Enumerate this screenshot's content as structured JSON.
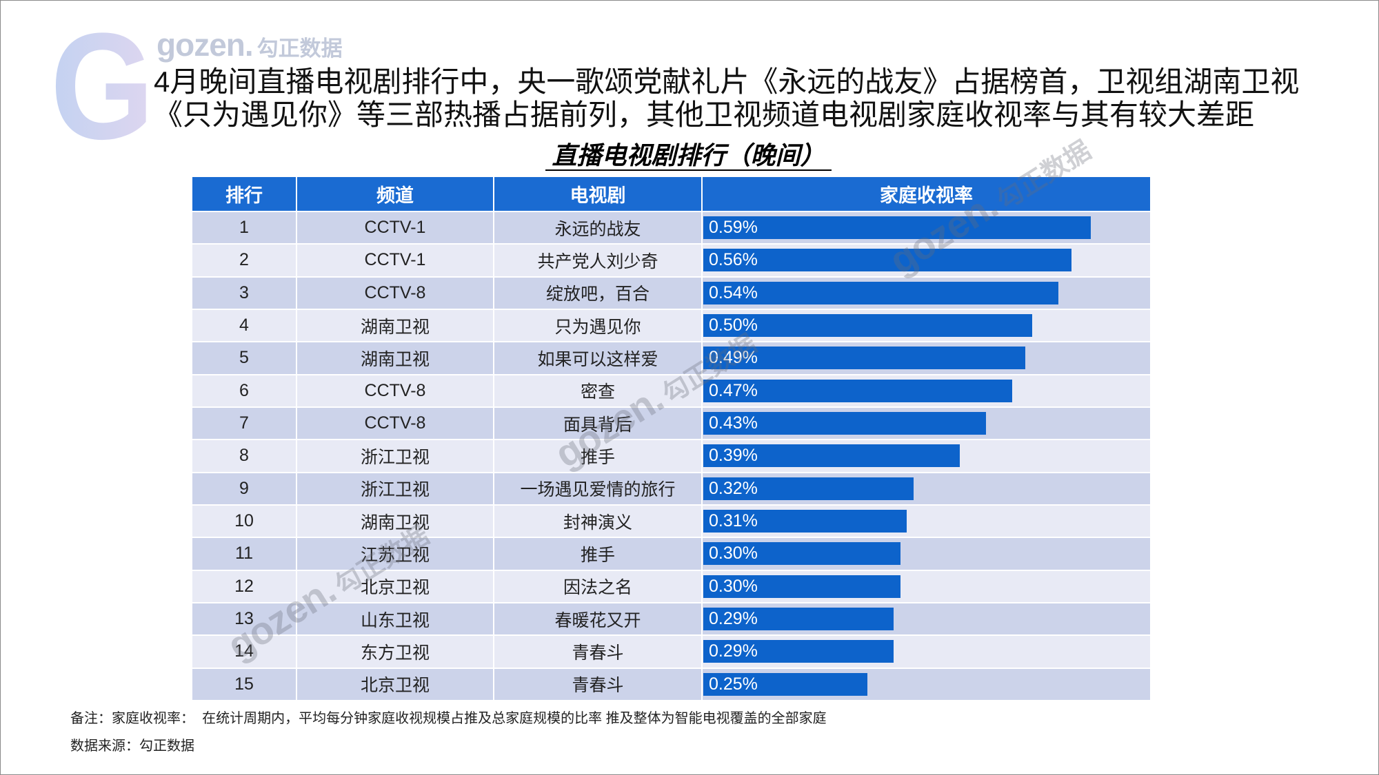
{
  "slide": {
    "logo": {
      "mark": "G",
      "latin": "gozen.",
      "cn": "勾正数据"
    },
    "headline": [
      "4月晚间直播电视剧排行中，央一歌颂党献礼片《永远的战友》占据榜首，卫视组湖南卫视",
      "《只为遇见你》等三部热播占据前列，其他卫视频道电视剧家庭收视率与其有较大差距"
    ],
    "footnote": "备注：家庭收视率：  在统计周期内，平均每分钟家庭收视规模占推及总家庭规模的比率 推及整体为智能电视覆盖的全部家庭",
    "source": "数据来源：勾正数据"
  },
  "colors": {
    "header_bg": "#1a6bd2",
    "header_text": "#ffffff",
    "bar": "#0d63cb",
    "bar_label": "#ffffff",
    "row_odd": "#ccd3ea",
    "row_even": "#e8eaf5",
    "logo_gradient": [
      "#c3d2f1",
      "#ded6f0"
    ]
  },
  "chart_data": {
    "type": "bar",
    "orientation": "horizontal",
    "title": "直播电视剧排行（晚间）",
    "columns": [
      "排行",
      "频道",
      "电视剧",
      "家庭收视率"
    ],
    "rows": [
      {
        "rank": "1",
        "channel": "CCTV-1",
        "drama": "永远的战友",
        "value": 0.59,
        "label": "0.59%"
      },
      {
        "rank": "2",
        "channel": "CCTV-1",
        "drama": "共产党人刘少奇",
        "value": 0.56,
        "label": "0.56%"
      },
      {
        "rank": "3",
        "channel": "CCTV-8",
        "drama": "绽放吧，百合",
        "value": 0.54,
        "label": "0.54%"
      },
      {
        "rank": "4",
        "channel": "湖南卫视",
        "drama": "只为遇见你",
        "value": 0.5,
        "label": "0.50%"
      },
      {
        "rank": "5",
        "channel": "湖南卫视",
        "drama": "如果可以这样爱",
        "value": 0.49,
        "label": "0.49%"
      },
      {
        "rank": "6",
        "channel": "CCTV-8",
        "drama": "密查",
        "value": 0.47,
        "label": "0.47%"
      },
      {
        "rank": "7",
        "channel": "CCTV-8",
        "drama": "面具背后",
        "value": 0.43,
        "label": "0.43%"
      },
      {
        "rank": "8",
        "channel": "浙江卫视",
        "drama": "推手",
        "value": 0.39,
        "label": "0.39%"
      },
      {
        "rank": "9",
        "channel": "浙江卫视",
        "drama": "一场遇见爱情的旅行",
        "value": 0.32,
        "label": "0.32%"
      },
      {
        "rank": "10",
        "channel": "湖南卫视",
        "drama": "封神演义",
        "value": 0.31,
        "label": "0.31%"
      },
      {
        "rank": "11",
        "channel": "江苏卫视",
        "drama": "推手",
        "value": 0.3,
        "label": "0.30%"
      },
      {
        "rank": "12",
        "channel": "北京卫视",
        "drama": "因法之名",
        "value": 0.3,
        "label": "0.30%"
      },
      {
        "rank": "13",
        "channel": "山东卫视",
        "drama": "春暖花又开",
        "value": 0.29,
        "label": "0.29%"
      },
      {
        "rank": "14",
        "channel": "东方卫视",
        "drama": "青春斗",
        "value": 0.29,
        "label": "0.29%"
      },
      {
        "rank": "15",
        "channel": "北京卫视",
        "drama": "青春斗",
        "value": 0.25,
        "label": "0.25%"
      }
    ]
  }
}
